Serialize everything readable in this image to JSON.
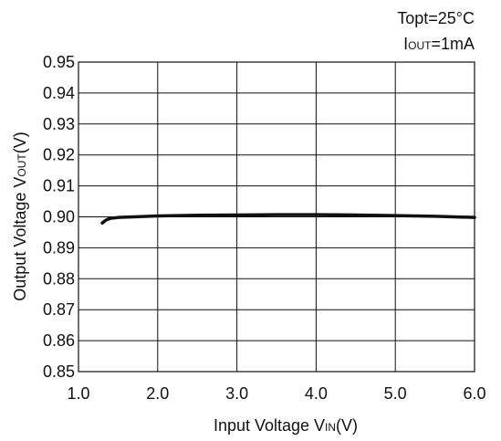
{
  "conditions": {
    "line1": "Topt=25°C",
    "line2_main": "I",
    "line2_sub": "OUT",
    "line2_rest": "=1mA"
  },
  "chart_data": {
    "type": "line",
    "x_axis": {
      "label_main": "Input Voltage V",
      "label_sub": "IN",
      "label_rest": "(V)",
      "lim": [
        1.0,
        6.0
      ],
      "ticks": [
        "1.0",
        "2.0",
        "3.0",
        "4.0",
        "5.0",
        "6.0"
      ]
    },
    "y_axis": {
      "label_main": "Output Voltage V",
      "label_sub": "OUT",
      "label_rest": "(V)",
      "lim": [
        0.85,
        0.95
      ],
      "ticks": [
        "0.85",
        "0.86",
        "0.87",
        "0.88",
        "0.89",
        "0.90",
        "0.91",
        "0.92",
        "0.93",
        "0.94",
        "0.95"
      ]
    },
    "grid": true,
    "series": [
      {
        "color": "#111111",
        "x": [
          1.3,
          1.35,
          1.4,
          1.5,
          1.7,
          2.0,
          2.5,
          3.0,
          3.5,
          4.0,
          4.5,
          5.0,
          5.5,
          6.0
        ],
        "y": [
          0.898,
          0.899,
          0.8995,
          0.8998,
          0.9,
          0.9003,
          0.9005,
          0.9006,
          0.9007,
          0.9007,
          0.9006,
          0.9004,
          0.9002,
          0.8998
        ]
      }
    ]
  }
}
